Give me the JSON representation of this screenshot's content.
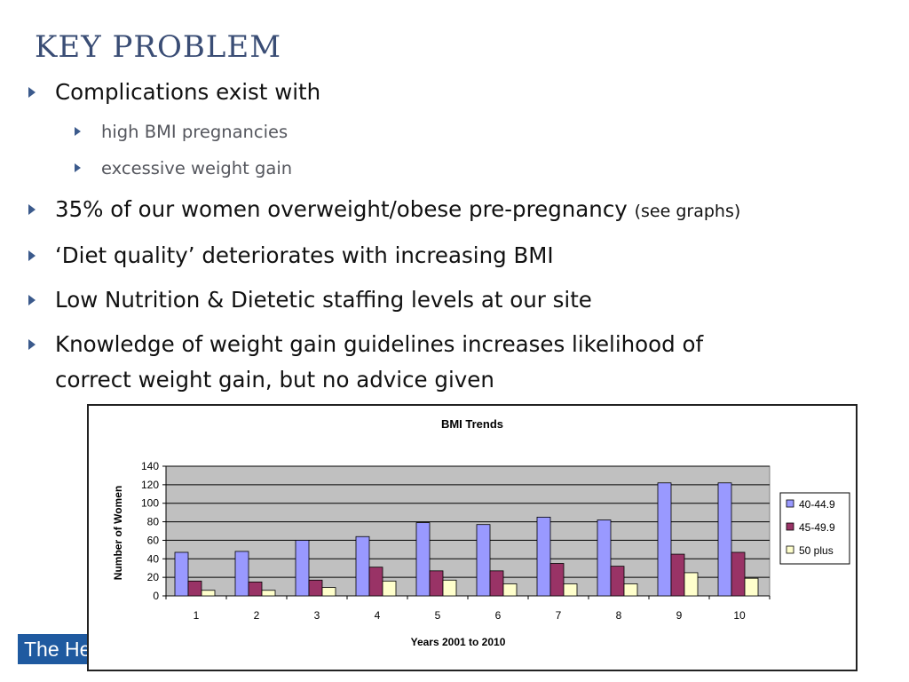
{
  "slide": {
    "title": "KEY PROBLEM",
    "bullets": [
      {
        "text": "Complications exist with"
      },
      {
        "text": "high BMI pregnancies",
        "level": 2
      },
      {
        "text": "excessive weight gain",
        "level": 2
      },
      {
        "text": "35% of our women overweight/obese pre-pregnancy",
        "suffix": "(see graphs)"
      },
      {
        "text": "‘Diet quality’ deteriorates with increasing BMI"
      },
      {
        "text": "Low Nutrition & Dietetic staffing levels at our site"
      },
      {
        "text_line1": "Knowledge of weight gain guidelines increases likelihood of",
        "text_line2": "correct weight gain, but no advice given"
      }
    ],
    "footer_text": "The He"
  },
  "chart_data": {
    "type": "bar",
    "title": "BMI Trends",
    "xlabel": "Years 2001 to 2010",
    "ylabel": "Number of Women",
    "categories": [
      "1",
      "2",
      "3",
      "4",
      "5",
      "6",
      "7",
      "8",
      "9",
      "10"
    ],
    "ylim": [
      0,
      140
    ],
    "yticks": [
      0,
      20,
      40,
      60,
      80,
      100,
      120,
      140
    ],
    "grid": true,
    "legend_position": "right",
    "series": [
      {
        "name": "40-44.9",
        "color": "#9999ff",
        "values": [
          47,
          48,
          60,
          64,
          79,
          77,
          85,
          82,
          122,
          122
        ]
      },
      {
        "name": "45-49.9",
        "color": "#993366",
        "values": [
          16,
          15,
          17,
          31,
          27,
          27,
          35,
          32,
          45,
          47
        ]
      },
      {
        "name": "50 plus",
        "color": "#ffffcc",
        "values": [
          6,
          6,
          9,
          16,
          17,
          13,
          13,
          13,
          25,
          19
        ]
      }
    ],
    "plot_background": "#c0c0c0"
  }
}
